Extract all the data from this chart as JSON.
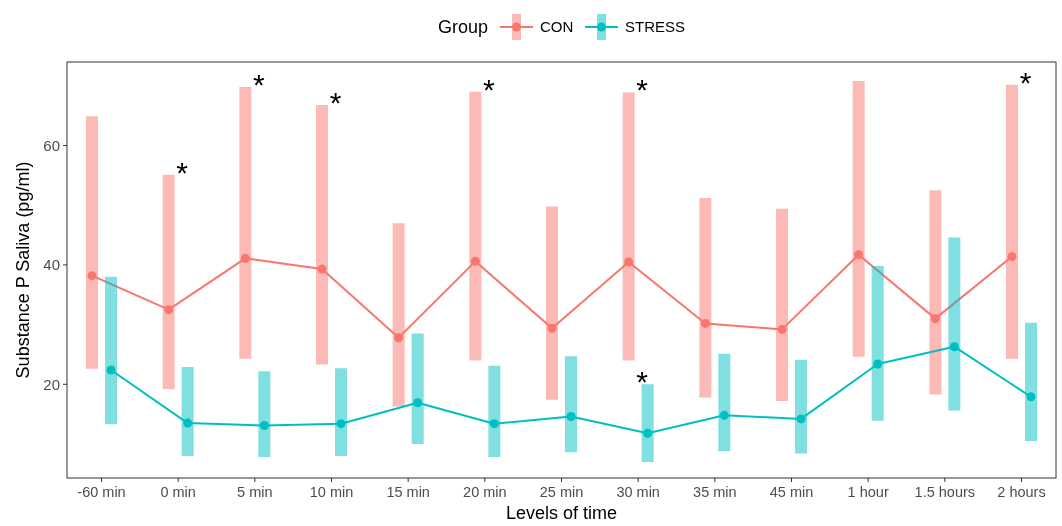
{
  "chart_data": {
    "type": "line",
    "xlabel": "Levels of time",
    "ylabel": "Substance P Saliva (pg/ml)",
    "legend_title": "Group",
    "legend": "top",
    "marker": "circle",
    "grid": false,
    "categories": [
      "-60 min",
      "0 min",
      "5 min",
      "10 min",
      "15 min",
      "20 min",
      "25 min",
      "30 min",
      "35 min",
      "45 min",
      "1 hour",
      "1.5 hours",
      "2 hours"
    ],
    "ylim": [
      4.3,
      74
    ],
    "yticks": [
      20,
      40,
      60
    ],
    "series": [
      {
        "name": "CON",
        "color": "#f8766d",
        "values": [
          38.2,
          32.5,
          41.1,
          39.3,
          27.8,
          40.6,
          29.4,
          40.5,
          30.2,
          29.2,
          41.7,
          31.0,
          41.4
        ],
        "errors": [
          [
            22.6,
            64.9
          ],
          [
            19.2,
            55.1
          ],
          [
            24.3,
            69.8
          ],
          [
            23.3,
            66.8
          ],
          [
            16.3,
            47.0
          ],
          [
            24.0,
            69.0
          ],
          [
            17.4,
            49.8
          ],
          [
            24.0,
            68.9
          ],
          [
            17.8,
            51.2
          ],
          [
            17.2,
            49.4
          ],
          [
            24.6,
            70.8
          ],
          [
            18.3,
            52.5
          ],
          [
            24.3,
            70.2
          ]
        ]
      },
      {
        "name": "STRESS",
        "color": "#00bfc4",
        "values": [
          22.4,
          13.5,
          13.1,
          13.4,
          16.9,
          13.4,
          14.6,
          11.8,
          14.8,
          14.2,
          23.4,
          26.3,
          17.9
        ],
        "errors": [
          [
            13.3,
            38.0
          ],
          [
            8.0,
            22.9
          ],
          [
            7.8,
            22.2
          ],
          [
            8.0,
            22.7
          ],
          [
            10.0,
            28.5
          ],
          [
            7.8,
            23.1
          ],
          [
            8.6,
            24.7
          ],
          [
            7.0,
            20.0
          ],
          [
            8.8,
            25.1
          ],
          [
            8.4,
            24.1
          ],
          [
            13.9,
            39.8
          ],
          [
            15.6,
            44.6
          ],
          [
            10.5,
            30.3
          ]
        ]
      }
    ],
    "annotations": [
      {
        "text": "*",
        "x": "0 min",
        "y": 55.1
      },
      {
        "text": "*",
        "x": "5 min",
        "y": 69.8
      },
      {
        "text": "*",
        "x": "10 min",
        "y": 66.8
      },
      {
        "text": "*",
        "x": "20 min",
        "y": 69.0
      },
      {
        "text": "*",
        "x": "30 min",
        "y": 68.9
      },
      {
        "text": "*",
        "x": "2 hours",
        "y": 70.2
      },
      {
        "text": "*",
        "x": "30 min",
        "y": 20.0
      }
    ]
  }
}
